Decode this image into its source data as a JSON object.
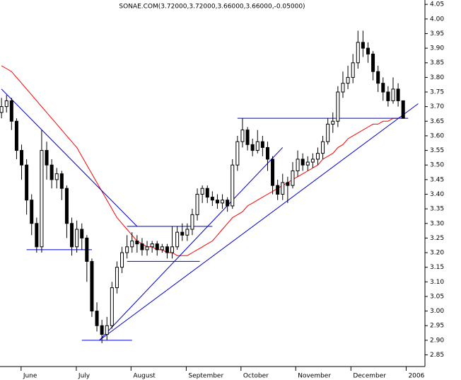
{
  "chart_data": {
    "type": "candlestick",
    "title": "SONAE.COM(3.72000,3.72000,3.66000,3.66000,-0.05000)",
    "open": [
      3.68,
      3.7,
      3.72,
      3.65,
      3.55,
      3.5,
      3.38,
      3.3,
      3.22,
      3.55,
      3.5,
      3.45,
      3.47,
      3.42,
      3.3,
      3.22,
      3.28,
      3.25,
      3.17,
      3.0,
      2.95,
      2.92,
      2.95,
      3.08,
      3.15,
      3.2,
      3.22,
      3.24,
      3.23,
      3.21,
      3.22,
      3.23,
      3.21,
      3.22,
      3.2,
      3.22,
      3.27,
      3.26,
      3.28,
      3.33,
      3.4,
      3.42,
      3.39,
      3.38,
      3.37,
      3.38,
      3.36,
      3.5,
      3.58,
      3.62,
      3.57,
      3.55,
      3.58,
      3.56,
      3.52,
      3.43,
      3.4,
      3.44,
      3.43,
      3.48,
      3.52,
      3.5,
      3.51,
      3.52,
      3.54,
      3.58,
      3.64,
      3.65,
      3.75,
      3.78,
      3.8,
      3.85,
      3.92,
      3.9,
      3.88,
      3.82,
      3.78,
      3.75,
      3.72,
      3.76,
      3.72
    ],
    "high": [
      3.73,
      3.74,
      3.73,
      3.66,
      3.57,
      3.52,
      3.4,
      3.32,
      3.62,
      3.58,
      3.52,
      3.49,
      3.48,
      3.43,
      3.32,
      3.31,
      3.3,
      3.26,
      3.18,
      3.03,
      2.97,
      2.98,
      3.1,
      3.17,
      3.22,
      3.26,
      3.27,
      3.26,
      3.25,
      3.24,
      3.24,
      3.24,
      3.23,
      3.23,
      3.29,
      3.29,
      3.3,
      3.3,
      3.35,
      3.42,
      3.43,
      3.43,
      3.41,
      3.4,
      3.4,
      3.39,
      3.52,
      3.6,
      3.66,
      3.63,
      3.59,
      3.62,
      3.6,
      3.58,
      3.53,
      3.45,
      3.47,
      3.46,
      3.51,
      3.55,
      3.54,
      3.53,
      3.54,
      3.56,
      3.6,
      3.66,
      3.68,
      3.77,
      3.82,
      3.84,
      3.88,
      3.96,
      3.96,
      3.92,
      3.89,
      3.84,
      3.8,
      3.77,
      3.8,
      3.78,
      3.72
    ],
    "low": [
      3.66,
      3.68,
      3.62,
      3.52,
      3.45,
      3.33,
      3.26,
      3.2,
      3.2,
      3.45,
      3.42,
      3.42,
      3.38,
      3.25,
      3.19,
      3.2,
      3.21,
      3.1,
      2.98,
      2.93,
      2.89,
      2.9,
      2.94,
      3.06,
      3.13,
      3.18,
      3.2,
      3.2,
      3.19,
      3.19,
      3.2,
      3.19,
      3.2,
      3.18,
      3.18,
      3.21,
      3.24,
      3.24,
      3.26,
      3.31,
      3.37,
      3.37,
      3.36,
      3.35,
      3.35,
      3.34,
      3.35,
      3.48,
      3.56,
      3.55,
      3.53,
      3.54,
      3.53,
      3.48,
      3.4,
      3.38,
      3.38,
      3.37,
      3.42,
      3.46,
      3.48,
      3.48,
      3.49,
      3.5,
      3.52,
      3.57,
      3.61,
      3.63,
      3.73,
      3.76,
      3.78,
      3.83,
      3.87,
      3.85,
      3.79,
      3.75,
      3.72,
      3.7,
      3.71,
      3.7,
      3.66
    ],
    "close": [
      3.7,
      3.72,
      3.65,
      3.55,
      3.5,
      3.38,
      3.3,
      3.22,
      3.55,
      3.5,
      3.45,
      3.47,
      3.42,
      3.3,
      3.22,
      3.28,
      3.25,
      3.17,
      3.0,
      2.95,
      2.92,
      2.95,
      3.08,
      3.15,
      3.2,
      3.22,
      3.24,
      3.23,
      3.21,
      3.22,
      3.23,
      3.21,
      3.22,
      3.2,
      3.22,
      3.27,
      3.26,
      3.28,
      3.33,
      3.4,
      3.42,
      3.39,
      3.38,
      3.37,
      3.38,
      3.36,
      3.5,
      3.58,
      3.62,
      3.57,
      3.55,
      3.58,
      3.56,
      3.52,
      3.43,
      3.4,
      3.44,
      3.43,
      3.48,
      3.52,
      3.5,
      3.51,
      3.52,
      3.54,
      3.58,
      3.64,
      3.65,
      3.75,
      3.78,
      3.8,
      3.85,
      3.92,
      3.9,
      3.88,
      3.82,
      3.78,
      3.75,
      3.72,
      3.76,
      3.72,
      3.66
    ],
    "moving_average": {
      "color": "#ff0000",
      "values": [
        3.84,
        3.83,
        3.82,
        3.8,
        3.78,
        3.76,
        3.74,
        3.72,
        3.7,
        3.68,
        3.66,
        3.64,
        3.62,
        3.6,
        3.58,
        3.56,
        3.53,
        3.5,
        3.47,
        3.44,
        3.41,
        3.38,
        3.35,
        3.32,
        3.3,
        3.28,
        3.26,
        3.24,
        3.23,
        3.22,
        3.22,
        3.21,
        3.21,
        3.2,
        3.2,
        3.19,
        3.19,
        3.19,
        3.2,
        3.21,
        3.22,
        3.23,
        3.24,
        3.26,
        3.28,
        3.3,
        3.32,
        3.33,
        3.34,
        3.36,
        3.37,
        3.38,
        3.39,
        3.4,
        3.41,
        3.42,
        3.43,
        3.44,
        3.45,
        3.46,
        3.47,
        3.48,
        3.49,
        3.5,
        3.52,
        3.53,
        3.54,
        3.56,
        3.57,
        3.59,
        3.6,
        3.61,
        3.62,
        3.63,
        3.64,
        3.64,
        3.65,
        3.65,
        3.66,
        3.66,
        3.67
      ]
    },
    "trendlines": {
      "color": "#0000cc",
      "lines": [
        {
          "x": [
            0,
            27
          ],
          "y": [
            3.76,
            3.29
          ]
        },
        {
          "x": [
            5,
            18
          ],
          "y": [
            3.21,
            3.21
          ]
        },
        {
          "x": [
            16,
            26
          ],
          "y": [
            2.9,
            2.9
          ]
        },
        {
          "x": [
            19.5,
            56
          ],
          "y": [
            2.9,
            3.56
          ]
        },
        {
          "x": [
            19.5,
            83
          ],
          "y": [
            2.9,
            3.71
          ]
        },
        {
          "x": [
            25,
            42
          ],
          "y": [
            3.29,
            3.29
          ]
        },
        {
          "x": [
            25,
            39.5
          ],
          "y": [
            3.17,
            3.17
          ]
        },
        {
          "x": [
            47,
            81
          ],
          "y": [
            3.66,
            3.66
          ]
        }
      ]
    },
    "xlim": [
      -0.3,
      84.2
    ],
    "xticks": [
      {
        "value": 3.9,
        "label": "June"
      },
      {
        "value": 14.9,
        "label": "July"
      },
      {
        "value": 25.8,
        "label": "August"
      },
      {
        "value": 36.8,
        "label": "September"
      },
      {
        "value": 47.7,
        "label": "October"
      },
      {
        "value": 58.6,
        "label": "November"
      },
      {
        "value": 69.6,
        "label": "December"
      },
      {
        "value": 80.6,
        "label": "2006"
      }
    ],
    "ylim": [
      2.81,
      4.065
    ],
    "yticks": [
      {
        "value": 2.85,
        "label": "2.85"
      },
      {
        "value": 2.9,
        "label": "2.90"
      },
      {
        "value": 2.95,
        "label": "2.95"
      },
      {
        "value": 3.0,
        "label": "3.00"
      },
      {
        "value": 3.05,
        "label": "3.05"
      },
      {
        "value": 3.1,
        "label": "3.10"
      },
      {
        "value": 3.15,
        "label": "3.15"
      },
      {
        "value": 3.2,
        "label": "3.20"
      },
      {
        "value": 3.25,
        "label": "3.25"
      },
      {
        "value": 3.3,
        "label": "3.30"
      },
      {
        "value": 3.35,
        "label": "3.35"
      },
      {
        "value": 3.4,
        "label": "3.40"
      },
      {
        "value": 3.45,
        "label": "3.45"
      },
      {
        "value": 3.5,
        "label": "3.50"
      },
      {
        "value": 3.55,
        "label": "3.55"
      },
      {
        "value": 3.6,
        "label": "3.60"
      },
      {
        "value": 3.65,
        "label": "3.65"
      },
      {
        "value": 3.7,
        "label": "3.70"
      },
      {
        "value": 3.75,
        "label": "3.75"
      },
      {
        "value": 3.8,
        "label": "3.80"
      },
      {
        "value": 3.85,
        "label": "3.85"
      },
      {
        "value": 3.9,
        "label": "3.90"
      },
      {
        "value": 3.95,
        "label": "3.95"
      },
      {
        "value": 4.0,
        "label": "4.00"
      },
      {
        "value": 4.05,
        "label": "4.05"
      }
    ]
  }
}
